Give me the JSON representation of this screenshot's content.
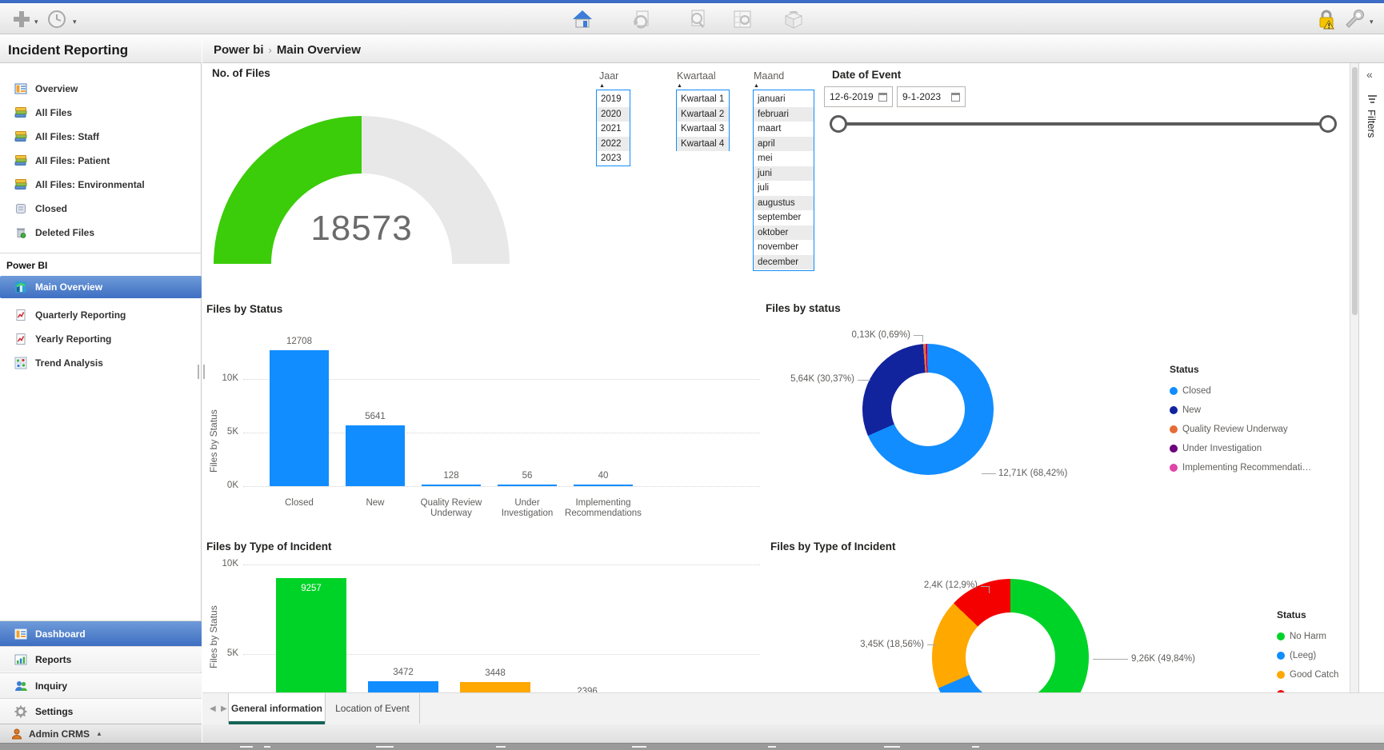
{
  "app": {
    "toolbar": {
      "left_icons": [
        "add",
        "history"
      ],
      "center_icons": [
        "home",
        "export-refresh",
        "document-inspect",
        "report-grid",
        "cube"
      ],
      "right_icons": [
        "lock-warning",
        "tools"
      ]
    },
    "sidebar": {
      "title": "Incident Reporting",
      "items": [
        "Overview",
        "All Files",
        "All Files: Staff",
        "All Files: Patient",
        "All Files: Environmental",
        "Closed",
        "Deleted Files"
      ],
      "powerbi_title": "Power BI",
      "powerbi_items": [
        "Main Overview",
        "Quarterly Reporting",
        "Yearly Reporting",
        "Trend Analysis"
      ],
      "powerbi_selected": "Main Overview",
      "bottom_items": [
        "Dashboard",
        "Reports",
        "Inquiry",
        "Settings"
      ],
      "bottom_selected": "Dashboard",
      "admin_label": "Admin CRMS"
    },
    "breadcrumb": {
      "section": "Power bi",
      "separator": "›",
      "page": "Main Overview"
    },
    "filters_pane": {
      "label": "Filters",
      "collapse_icon": "«"
    },
    "tabs": [
      {
        "label": "General information",
        "active": true
      },
      {
        "label": "Location of Event",
        "active": false
      }
    ]
  },
  "slicers": {
    "jaar": {
      "label": "Jaar",
      "options": [
        "2019",
        "2020",
        "2021",
        "2022",
        "2023"
      ]
    },
    "kwartaal": {
      "label": "Kwartaal",
      "options": [
        "Kwartaal 1",
        "Kwartaal 2",
        "Kwartaal 3",
        "Kwartaal 4"
      ]
    },
    "maand": {
      "label": "Maand",
      "options": [
        "januari",
        "februari",
        "maart",
        "april",
        "mei",
        "juni",
        "juli",
        "augustus",
        "september",
        "oktober",
        "november",
        "december"
      ]
    },
    "date": {
      "label": "Date of Event",
      "start": "12-6-2019",
      "end": "9-1-2023"
    }
  },
  "chart_data": [
    {
      "id": "no-of-files-gauge",
      "type": "gauge",
      "title": "No. of Files",
      "value": 18573,
      "display_value": "18573",
      "fill_fraction": 0.5,
      "color": "#3BCC0A",
      "track_color": "#E8E8E8"
    },
    {
      "id": "files-by-status-bar",
      "type": "bar",
      "title": "Files by Status",
      "ylabel": "Files by Status",
      "yticks": [
        "0K",
        "5K",
        "10K"
      ],
      "ylim": [
        0,
        13000
      ],
      "grid": true,
      "categories": [
        "Closed",
        "New",
        "Quality Review Underway",
        "Under Investigation",
        "Implementing Recommendations"
      ],
      "values": [
        12708,
        5641,
        128,
        56,
        40
      ],
      "value_labels": [
        "12708",
        "5641",
        "128",
        "56",
        "40"
      ],
      "bar_color": "#118DFF"
    },
    {
      "id": "files-by-status-donut",
      "type": "pie",
      "title": "Files by status",
      "legend_title": "Status",
      "legend_position": "right",
      "slices": [
        {
          "label": "Closed",
          "pct": 68.42,
          "color": "#118DFF",
          "callout": "12,71K (68,42%)"
        },
        {
          "label": "New",
          "pct": 30.37,
          "color": "#12239E",
          "callout": "5,64K (30,37%)"
        },
        {
          "label": "Quality Review Underway",
          "pct": 0.69,
          "color": "#E66C37",
          "callout": "0,13K (0,69%)"
        },
        {
          "label": "Under Investigation",
          "pct": 0.3,
          "color": "#6B007B",
          "callout": ""
        },
        {
          "label": "Implementing Recommendati…",
          "pct": 0.22,
          "color": "#E044A7",
          "callout": ""
        }
      ]
    },
    {
      "id": "files-by-type-bar",
      "type": "bar",
      "title": "Files by Type of Incident",
      "ylabel": "Files by Status",
      "yticks": [
        "5K",
        "10K"
      ],
      "ylim": [
        0,
        10000
      ],
      "grid": true,
      "categories": [],
      "values": [
        9257,
        3472,
        3448,
        2396
      ],
      "value_labels": [
        "9257",
        "3472",
        "3448",
        "2396"
      ],
      "colors": [
        "#00D327",
        "#118DFF",
        "#FFA800",
        "#118DFF"
      ]
    },
    {
      "id": "files-by-type-donut",
      "type": "pie",
      "title": "Files by Type of Incident",
      "legend_title": "Status",
      "legend_position": "right",
      "slices": [
        {
          "label": "No Harm",
          "pct": 49.84,
          "color": "#00D327",
          "callout": "9,26K (49,84%)"
        },
        {
          "label": "(Leeg)",
          "pct": 18.7,
          "color": "#118DFF",
          "callout": ""
        },
        {
          "label": "Good Catch",
          "pct": 18.56,
          "color": "#FFA800",
          "callout": "3,45K (18,56%)"
        },
        {
          "label": "",
          "pct": 12.9,
          "color": "#F40000",
          "callout": "2,4K (12,9%)"
        }
      ]
    }
  ]
}
